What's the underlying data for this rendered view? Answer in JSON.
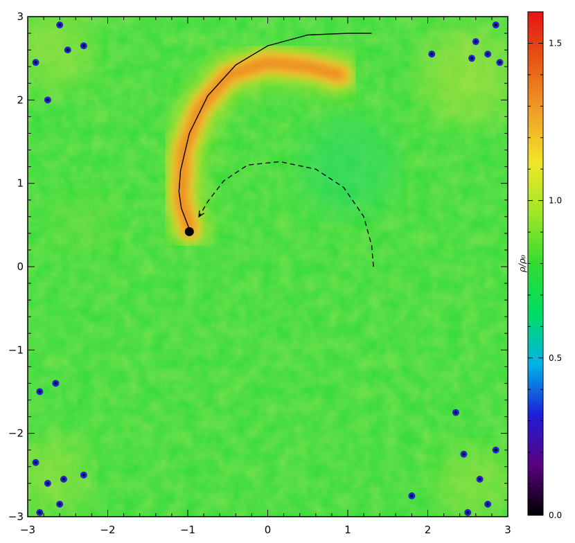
{
  "chart_data": {
    "type": "heatmap",
    "title": "",
    "xlabel": "",
    "ylabel": "",
    "xlim": [
      -3,
      3
    ],
    "ylim": [
      -3,
      3
    ],
    "x_ticks": [
      -3,
      -2,
      -1,
      0,
      1,
      2,
      3
    ],
    "y_ticks": [
      -3,
      -2,
      -1,
      0,
      1,
      2,
      3
    ],
    "x_tick_labels": [
      "−3",
      "−2",
      "−1",
      "0",
      "1",
      "2",
      "3"
    ],
    "y_tick_labels": [
      "−3",
      "−2",
      "−1",
      "0",
      "1",
      "2",
      "3"
    ],
    "colorbar": {
      "label": "ρ/ρ₀",
      "range": [
        0.0,
        1.6
      ],
      "ticks": [
        0.0,
        0.5,
        1.0,
        1.5
      ],
      "tick_labels": [
        "0.0",
        "0.5",
        "1.0",
        "1.5"
      ],
      "colormap": [
        "#000000",
        "#5a0080",
        "#1e1ed8",
        "#00b4e6",
        "#00dc64",
        "#32dc32",
        "#a0e628",
        "#f0e628",
        "#f0a028",
        "#e65a14",
        "#e61414"
      ]
    },
    "background_density": 1.0,
    "arm": {
      "description_density": [
        1.15,
        1.45
      ],
      "path": [
        [
          -0.98,
          0.45
        ],
        [
          -1.08,
          0.8
        ],
        [
          -1.05,
          1.4
        ],
        [
          -0.85,
          1.9
        ],
        [
          -0.5,
          2.3
        ],
        [
          0.0,
          2.45
        ],
        [
          0.5,
          2.4
        ],
        [
          0.9,
          2.3
        ]
      ]
    },
    "low_density_spots": [
      [
        -2.9,
        2.45
      ],
      [
        -2.75,
        2.0
      ],
      [
        -2.5,
        2.6
      ],
      [
        -2.3,
        2.65
      ],
      [
        -2.6,
        2.9
      ],
      [
        2.6,
        2.7
      ],
      [
        2.75,
        2.55
      ],
      [
        2.9,
        2.45
      ],
      [
        2.55,
        2.5
      ],
      [
        2.05,
        2.55
      ],
      [
        2.85,
        2.9
      ],
      [
        -2.85,
        -1.5
      ],
      [
        -2.65,
        -1.4
      ],
      [
        -2.9,
        -2.35
      ],
      [
        -2.75,
        -2.6
      ],
      [
        -2.55,
        -2.55
      ],
      [
        -2.3,
        -2.5
      ],
      [
        -2.6,
        -2.85
      ],
      [
        -2.85,
        -2.95
      ],
      [
        2.35,
        -1.75
      ],
      [
        2.45,
        -2.25
      ],
      [
        2.65,
        -2.55
      ],
      [
        2.85,
        -2.2
      ],
      [
        2.75,
        -2.85
      ],
      [
        2.5,
        -2.95
      ],
      [
        1.8,
        -2.75
      ]
    ],
    "curves": [
      {
        "name": "",
        "style": "solid",
        "x": [
          1.3,
          1.0,
          0.5,
          0.0,
          -0.4,
          -0.75,
          -0.98,
          -1.09,
          -1.11,
          -1.08,
          -1.02,
          -0.98
        ],
        "y": [
          2.8,
          2.8,
          2.78,
          2.65,
          2.42,
          2.05,
          1.6,
          1.15,
          0.9,
          0.7,
          0.55,
          0.45
        ]
      },
      {
        "name": "",
        "style": "dashed",
        "x": [
          1.32,
          1.3,
          1.2,
          0.95,
          0.6,
          0.15,
          -0.25,
          -0.55,
          -0.75,
          -0.86
        ],
        "y": [
          0.0,
          0.25,
          0.6,
          0.95,
          1.17,
          1.26,
          1.22,
          1.03,
          0.78,
          0.6
        ]
      }
    ],
    "point": {
      "x": -0.98,
      "y": 0.42,
      "marker": "filled-circle"
    }
  }
}
